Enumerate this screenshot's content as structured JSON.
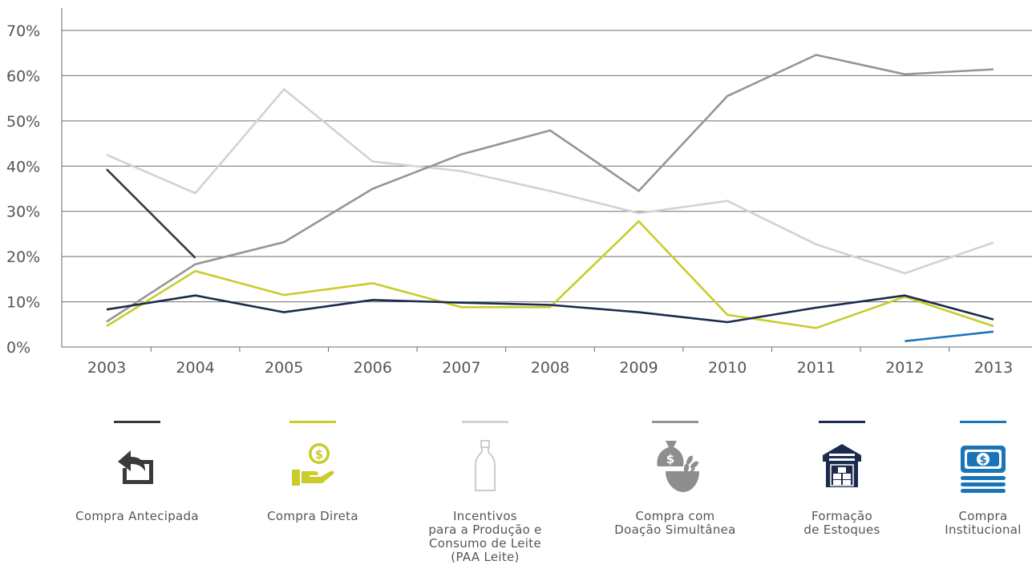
{
  "chart_data": {
    "type": "line",
    "x": [
      "2003",
      "2004",
      "2005",
      "2006",
      "2007",
      "2008",
      "2009",
      "2010",
      "2011",
      "2012",
      "2013"
    ],
    "yticks": [
      "0%",
      "10%",
      "20%",
      "30%",
      "40%",
      "50%",
      "60%",
      "70%"
    ],
    "ylim": [
      0,
      70
    ],
    "grid": "horizontal",
    "legend_placement": "bottom",
    "series": [
      {
        "key": "antecipada",
        "name_lines": [
          "Compra Antecipada"
        ],
        "color": "#3a3a3c",
        "icon": "return-arrow-icon",
        "values": [
          39.3,
          19.7,
          null,
          null,
          null,
          null,
          null,
          null,
          null,
          null,
          null
        ]
      },
      {
        "key": "direta",
        "name_lines": [
          "Compra Direta"
        ],
        "color": "#c9cc2a",
        "icon": "hand-coin-icon",
        "values": [
          4.6,
          16.8,
          11.5,
          14.1,
          8.8,
          8.8,
          27.8,
          7.1,
          4.2,
          11.1,
          4.6
        ]
      },
      {
        "key": "leite",
        "name_lines": [
          "Incentivos",
          "para a Produção e",
          "Consumo de Leite",
          "(PAA Leite)"
        ],
        "color": "#d2d2d2",
        "icon": "milk-bottle-icon",
        "values": [
          42.5,
          34.0,
          57.0,
          41.0,
          38.9,
          34.5,
          29.6,
          32.3,
          22.7,
          16.3,
          23.1
        ]
      },
      {
        "key": "doacao",
        "name_lines": [
          "Compra com",
          "Doação Simultânea"
        ],
        "color": "#959595",
        "icon": "money-bag-grain-icon",
        "values": [
          5.6,
          18.3,
          23.2,
          35.0,
          42.6,
          47.9,
          34.5,
          55.5,
          64.6,
          60.3,
          61.4
        ]
      },
      {
        "key": "estoques",
        "name_lines": [
          "Formação",
          "de Estoques"
        ],
        "color": "#1c2b4d",
        "icon": "warehouse-icon",
        "values": [
          8.3,
          11.4,
          7.7,
          10.4,
          9.8,
          9.3,
          7.7,
          5.5,
          8.7,
          11.4,
          6.1
        ]
      },
      {
        "key": "institucional",
        "name_lines": [
          "Compra",
          "Institucional"
        ],
        "color": "#1a75b8",
        "icon": "banknotes-icon",
        "values": [
          null,
          null,
          null,
          null,
          null,
          null,
          null,
          null,
          null,
          1.3,
          3.4
        ]
      }
    ]
  }
}
